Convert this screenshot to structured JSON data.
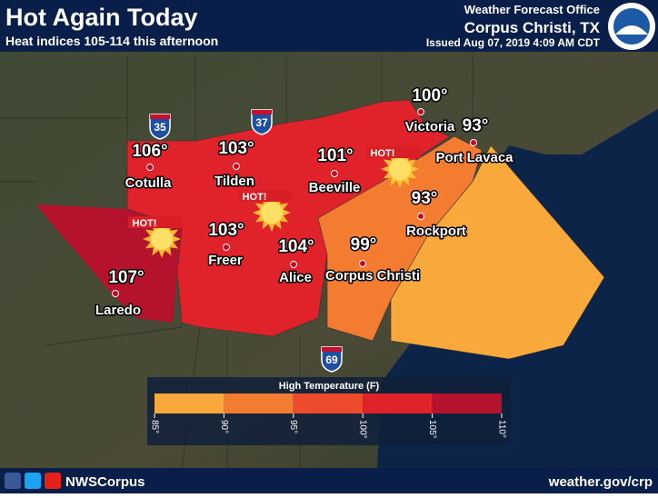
{
  "header": {
    "title": "Hot Again Today",
    "subtitle": "Heat indices 105-114 this afternoon",
    "office": "Weather Forecast Office",
    "location": "Corpus Christi, TX",
    "issued": "Issued Aug 07, 2019 4:09 AM CDT"
  },
  "cities": [
    {
      "name": "Cotulla",
      "temp": "106°"
    },
    {
      "name": "Tilden",
      "temp": "103°"
    },
    {
      "name": "Beeville",
      "temp": "101°"
    },
    {
      "name": "Victoria",
      "temp": "100°"
    },
    {
      "name": "Port Lavaca",
      "temp": "93°"
    },
    {
      "name": "Rockport",
      "temp": "93°"
    },
    {
      "name": "Corpus Christi",
      "temp": "99°"
    },
    {
      "name": "Alice",
      "temp": "104°"
    },
    {
      "name": "Freer",
      "temp": "103°"
    },
    {
      "name": "Laredo",
      "temp": "107°"
    }
  ],
  "badges": [
    "HOT!",
    "HOT!",
    "HOT!"
  ],
  "shields": [
    "35",
    "37",
    "69"
  ],
  "legend": {
    "title": "High Temperature (F)",
    "colors": [
      "#f9a83c",
      "#f47c30",
      "#ee4a2c",
      "#e0222a",
      "#b5122d"
    ],
    "ticks": [
      "85°",
      "90°",
      "95°",
      "100°",
      "105°",
      "110°"
    ]
  },
  "footer": {
    "social": "NWSCorpus",
    "url": "weather.gov/crp"
  }
}
